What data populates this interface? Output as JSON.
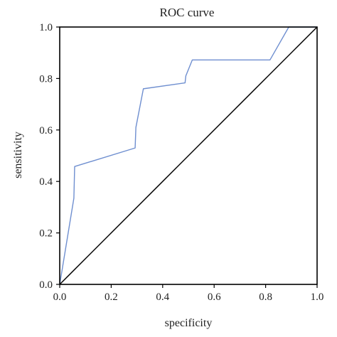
{
  "chart_data": {
    "type": "line",
    "title": "ROC curve",
    "xlabel": "specificity",
    "ylabel": "sensitivity",
    "xlim": [
      0.0,
      1.0
    ],
    "ylim": [
      0.0,
      1.0
    ],
    "x_ticks": [
      "0.0",
      "0.2",
      "0.4",
      "0.6",
      "0.8",
      "1.0"
    ],
    "y_ticks": [
      "0.0",
      "0.2",
      "0.4",
      "0.6",
      "0.8",
      "1.0"
    ],
    "grid": false,
    "legend": "none",
    "series": [
      {
        "color": "#6f8fd0",
        "x": [
          0.0,
          0.055,
          0.058,
          0.293,
          0.296,
          0.325,
          0.487,
          0.49,
          0.515,
          0.817,
          0.89,
          1.0
        ],
        "y": [
          0.0,
          0.335,
          0.458,
          0.53,
          0.61,
          0.76,
          0.783,
          0.81,
          0.872,
          0.872,
          1.0,
          1.0
        ]
      },
      {
        "color": "#000000",
        "x": [
          0.0,
          1.0
        ],
        "y": [
          0.0,
          1.0
        ]
      }
    ]
  }
}
